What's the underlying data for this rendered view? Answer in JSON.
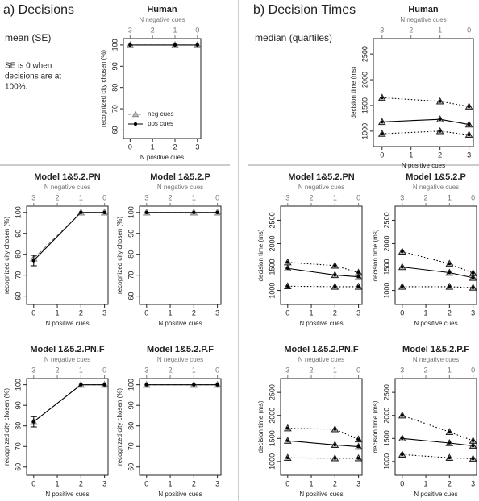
{
  "sections": [
    {
      "title": "a) Decisions",
      "subtitle": "mean (SE)",
      "note": [
        "SE is 0 when",
        "decisions are at",
        "100%."
      ]
    },
    {
      "title": "b) Decision Times",
      "subtitle": "median (quartiles)"
    }
  ],
  "chart_data": [
    {
      "type": "line",
      "title": "Human",
      "xlabel": "N positive cues",
      "x2label": "N negative cues",
      "ylabel": "recognized city chosen (%)",
      "x": [
        0,
        2,
        3
      ],
      "xlim": [
        -0.3,
        3.15
      ],
      "xticks": [
        0,
        1,
        2,
        3
      ],
      "x2lim": [
        3.3,
        -0.15
      ],
      "x2ticks": [
        3,
        2,
        1,
        0
      ],
      "ylim": [
        56,
        103
      ],
      "yticks": [
        60,
        70,
        80,
        90,
        100
      ],
      "legend": "lower left",
      "series": [
        {
          "name": "neg cues",
          "color": "#888888",
          "marker": "triangle",
          "dash": true,
          "values": [
            100,
            100,
            100
          ]
        },
        {
          "name": "pos cues",
          "color": "#000000",
          "marker": "dot",
          "dash": false,
          "values": [
            100,
            100,
            100
          ]
        }
      ]
    },
    {
      "type": "line",
      "title": "Model 1&5.2.PN",
      "xlabel": "N positive cues",
      "x2label": "N negative cues",
      "ylabel": "recognized city chosen (%)",
      "x": [
        0,
        2,
        3
      ],
      "xlim": [
        -0.3,
        3.15
      ],
      "xticks": [
        0,
        1,
        2,
        3
      ],
      "x2lim": [
        3.3,
        -0.15
      ],
      "x2ticks": [
        3,
        2,
        1,
        0
      ],
      "ylim": [
        56,
        103
      ],
      "yticks": [
        60,
        70,
        80,
        90,
        100
      ],
      "series": [
        {
          "color": "#888888",
          "marker": "triangle",
          "dash": true,
          "values": [
            78,
            100,
            100
          ]
        },
        {
          "color": "#000000",
          "marker": "dot",
          "dash": false,
          "values": [
            77,
            100,
            100
          ],
          "errors": [
            2.5,
            0,
            0
          ]
        }
      ]
    },
    {
      "type": "line",
      "title": "Model 1&5.2.P",
      "xlabel": "N positive cues",
      "x2label": "N negative cues",
      "ylabel": "recognized city chosen (%)",
      "x": [
        0,
        2,
        3
      ],
      "xlim": [
        -0.3,
        3.15
      ],
      "xticks": [
        0,
        1,
        2,
        3
      ],
      "x2lim": [
        3.3,
        -0.15
      ],
      "x2ticks": [
        3,
        2,
        1,
        0
      ],
      "ylim": [
        56,
        103
      ],
      "yticks": [
        60,
        70,
        80,
        90,
        100
      ],
      "series": [
        {
          "color": "#888888",
          "marker": "triangle",
          "dash": true,
          "values": [
            100,
            100,
            100
          ]
        },
        {
          "color": "#000000",
          "marker": "dot",
          "dash": false,
          "values": [
            100,
            100,
            100
          ]
        }
      ]
    },
    {
      "type": "line",
      "title": "Model 1&5.2.PN.F",
      "xlabel": "N positive cues",
      "x2label": "N negative cues",
      "ylabel": "recognized city chosen (%)",
      "x": [
        0,
        2,
        3
      ],
      "xlim": [
        -0.3,
        3.15
      ],
      "xticks": [
        0,
        1,
        2,
        3
      ],
      "x2lim": [
        3.3,
        -0.15
      ],
      "x2ticks": [
        3,
        2,
        1,
        0
      ],
      "ylim": [
        56,
        103
      ],
      "yticks": [
        60,
        70,
        80,
        90,
        100
      ],
      "series": [
        {
          "color": "#888888",
          "marker": "triangle",
          "dash": true,
          "values": [
            82,
            100,
            100
          ]
        },
        {
          "color": "#000000",
          "marker": "dot",
          "dash": false,
          "values": [
            82,
            100,
            100
          ],
          "errors": [
            2.5,
            0,
            0
          ]
        }
      ]
    },
    {
      "type": "line",
      "title": "Model 1&5.2.P.F",
      "xlabel": "N positive cues",
      "x2label": "N negative cues",
      "ylabel": "recognized city chosen (%)",
      "x": [
        0,
        2,
        3
      ],
      "xlim": [
        -0.3,
        3.15
      ],
      "xticks": [
        0,
        1,
        2,
        3
      ],
      "x2lim": [
        3.3,
        -0.15
      ],
      "x2ticks": [
        3,
        2,
        1,
        0
      ],
      "ylim": [
        56,
        103
      ],
      "yticks": [
        60,
        70,
        80,
        90,
        100
      ],
      "series": [
        {
          "color": "#888888",
          "marker": "triangle",
          "dash": true,
          "values": [
            100,
            100,
            100
          ]
        },
        {
          "color": "#000000",
          "marker": "dot",
          "dash": false,
          "values": [
            100,
            100,
            100
          ]
        }
      ]
    },
    {
      "type": "line",
      "title": "Human",
      "xlabel": "N positive cues",
      "x2label": "N negative cues",
      "ylabel": "decision time (ms)",
      "x": [
        0,
        2,
        3
      ],
      "xlim": [
        -0.3,
        3.15
      ],
      "xticks": [
        0,
        1,
        2,
        3
      ],
      "x2lim": [
        3.3,
        -0.15
      ],
      "x2ticks": [
        3,
        2,
        1,
        0
      ],
      "ylim": [
        700,
        2800
      ],
      "yticks": [
        1000,
        1500,
        2000,
        2500
      ],
      "series": [
        {
          "color": "#000000",
          "marker": "both",
          "dash": true,
          "values": [
            1650,
            1580,
            1480
          ]
        },
        {
          "color": "#000000",
          "marker": "both",
          "dash": false,
          "values": [
            1180,
            1230,
            1130
          ]
        },
        {
          "color": "#000000",
          "marker": "both",
          "dash": true,
          "values": [
            950,
            1000,
            930
          ]
        }
      ]
    },
    {
      "type": "line",
      "title": "Model 1&5.2.PN",
      "xlabel": "N positive cues",
      "x2label": "N negative cues",
      "ylabel": "decision time (ms)",
      "x": [
        0,
        2,
        3
      ],
      "xlim": [
        -0.3,
        3.15
      ],
      "xticks": [
        0,
        1,
        2,
        3
      ],
      "x2lim": [
        3.3,
        -0.15
      ],
      "x2ticks": [
        3,
        2,
        1,
        0
      ],
      "ylim": [
        700,
        2800
      ],
      "yticks": [
        1000,
        1500,
        2000,
        2500
      ],
      "series": [
        {
          "color": "#000000",
          "marker": "both",
          "dash": true,
          "values": [
            1600,
            1530,
            1380
          ]
        },
        {
          "color": "#000000",
          "marker": "both",
          "dash": false,
          "values": [
            1470,
            1330,
            1290
          ]
        },
        {
          "color": "#000000",
          "marker": "both",
          "dash": true,
          "values": [
            1090,
            1080,
            1080
          ]
        }
      ]
    },
    {
      "type": "line",
      "title": "Model 1&5.2.P",
      "xlabel": "N positive cues",
      "x2label": "N negative cues",
      "ylabel": "decision time (ms)",
      "x": [
        0,
        2,
        3
      ],
      "xlim": [
        -0.3,
        3.15
      ],
      "xticks": [
        0,
        1,
        2,
        3
      ],
      "x2lim": [
        3.3,
        -0.15
      ],
      "x2ticks": [
        3,
        2,
        1,
        0
      ],
      "ylim": [
        700,
        2800
      ],
      "yticks": [
        1000,
        1500,
        2000,
        2500
      ],
      "series": [
        {
          "color": "#000000",
          "marker": "both",
          "dash": true,
          "values": [
            1830,
            1570,
            1370
          ]
        },
        {
          "color": "#000000",
          "marker": "both",
          "dash": false,
          "values": [
            1500,
            1380,
            1270
          ]
        },
        {
          "color": "#000000",
          "marker": "both",
          "dash": true,
          "values": [
            1080,
            1080,
            1060
          ]
        }
      ]
    },
    {
      "type": "line",
      "title": "Model 1&5.2.PN.F",
      "xlabel": "N positive cues",
      "x2label": "N negative cues",
      "ylabel": "decision time (ms)",
      "x": [
        0,
        2,
        3
      ],
      "xlim": [
        -0.3,
        3.15
      ],
      "xticks": [
        0,
        1,
        2,
        3
      ],
      "x2lim": [
        3.3,
        -0.15
      ],
      "x2ticks": [
        3,
        2,
        1,
        0
      ],
      "ylim": [
        700,
        2800
      ],
      "yticks": [
        1000,
        1500,
        2000,
        2500
      ],
      "series": [
        {
          "color": "#000000",
          "marker": "both",
          "dash": true,
          "values": [
            1720,
            1700,
            1480
          ]
        },
        {
          "color": "#000000",
          "marker": "both",
          "dash": false,
          "values": [
            1450,
            1360,
            1320
          ]
        },
        {
          "color": "#000000",
          "marker": "both",
          "dash": true,
          "values": [
            1080,
            1070,
            1070
          ]
        }
      ]
    },
    {
      "type": "line",
      "title": "Model 1&5.2.P.F",
      "xlabel": "N positive cues",
      "x2label": "N negative cues",
      "ylabel": "decision time (ms)",
      "x": [
        0,
        2,
        3
      ],
      "xlim": [
        -0.3,
        3.15
      ],
      "xticks": [
        0,
        1,
        2,
        3
      ],
      "x2lim": [
        3.3,
        -0.15
      ],
      "x2ticks": [
        3,
        2,
        1,
        0
      ],
      "ylim": [
        700,
        2800
      ],
      "yticks": [
        1000,
        1500,
        2000,
        2500
      ],
      "series": [
        {
          "color": "#000000",
          "marker": "both",
          "dash": true,
          "values": [
            2000,
            1640,
            1450
          ]
        },
        {
          "color": "#000000",
          "marker": "both",
          "dash": false,
          "values": [
            1500,
            1400,
            1340
          ]
        },
        {
          "color": "#000000",
          "marker": "both",
          "dash": true,
          "values": [
            1150,
            1080,
            1060
          ]
        }
      ]
    }
  ]
}
